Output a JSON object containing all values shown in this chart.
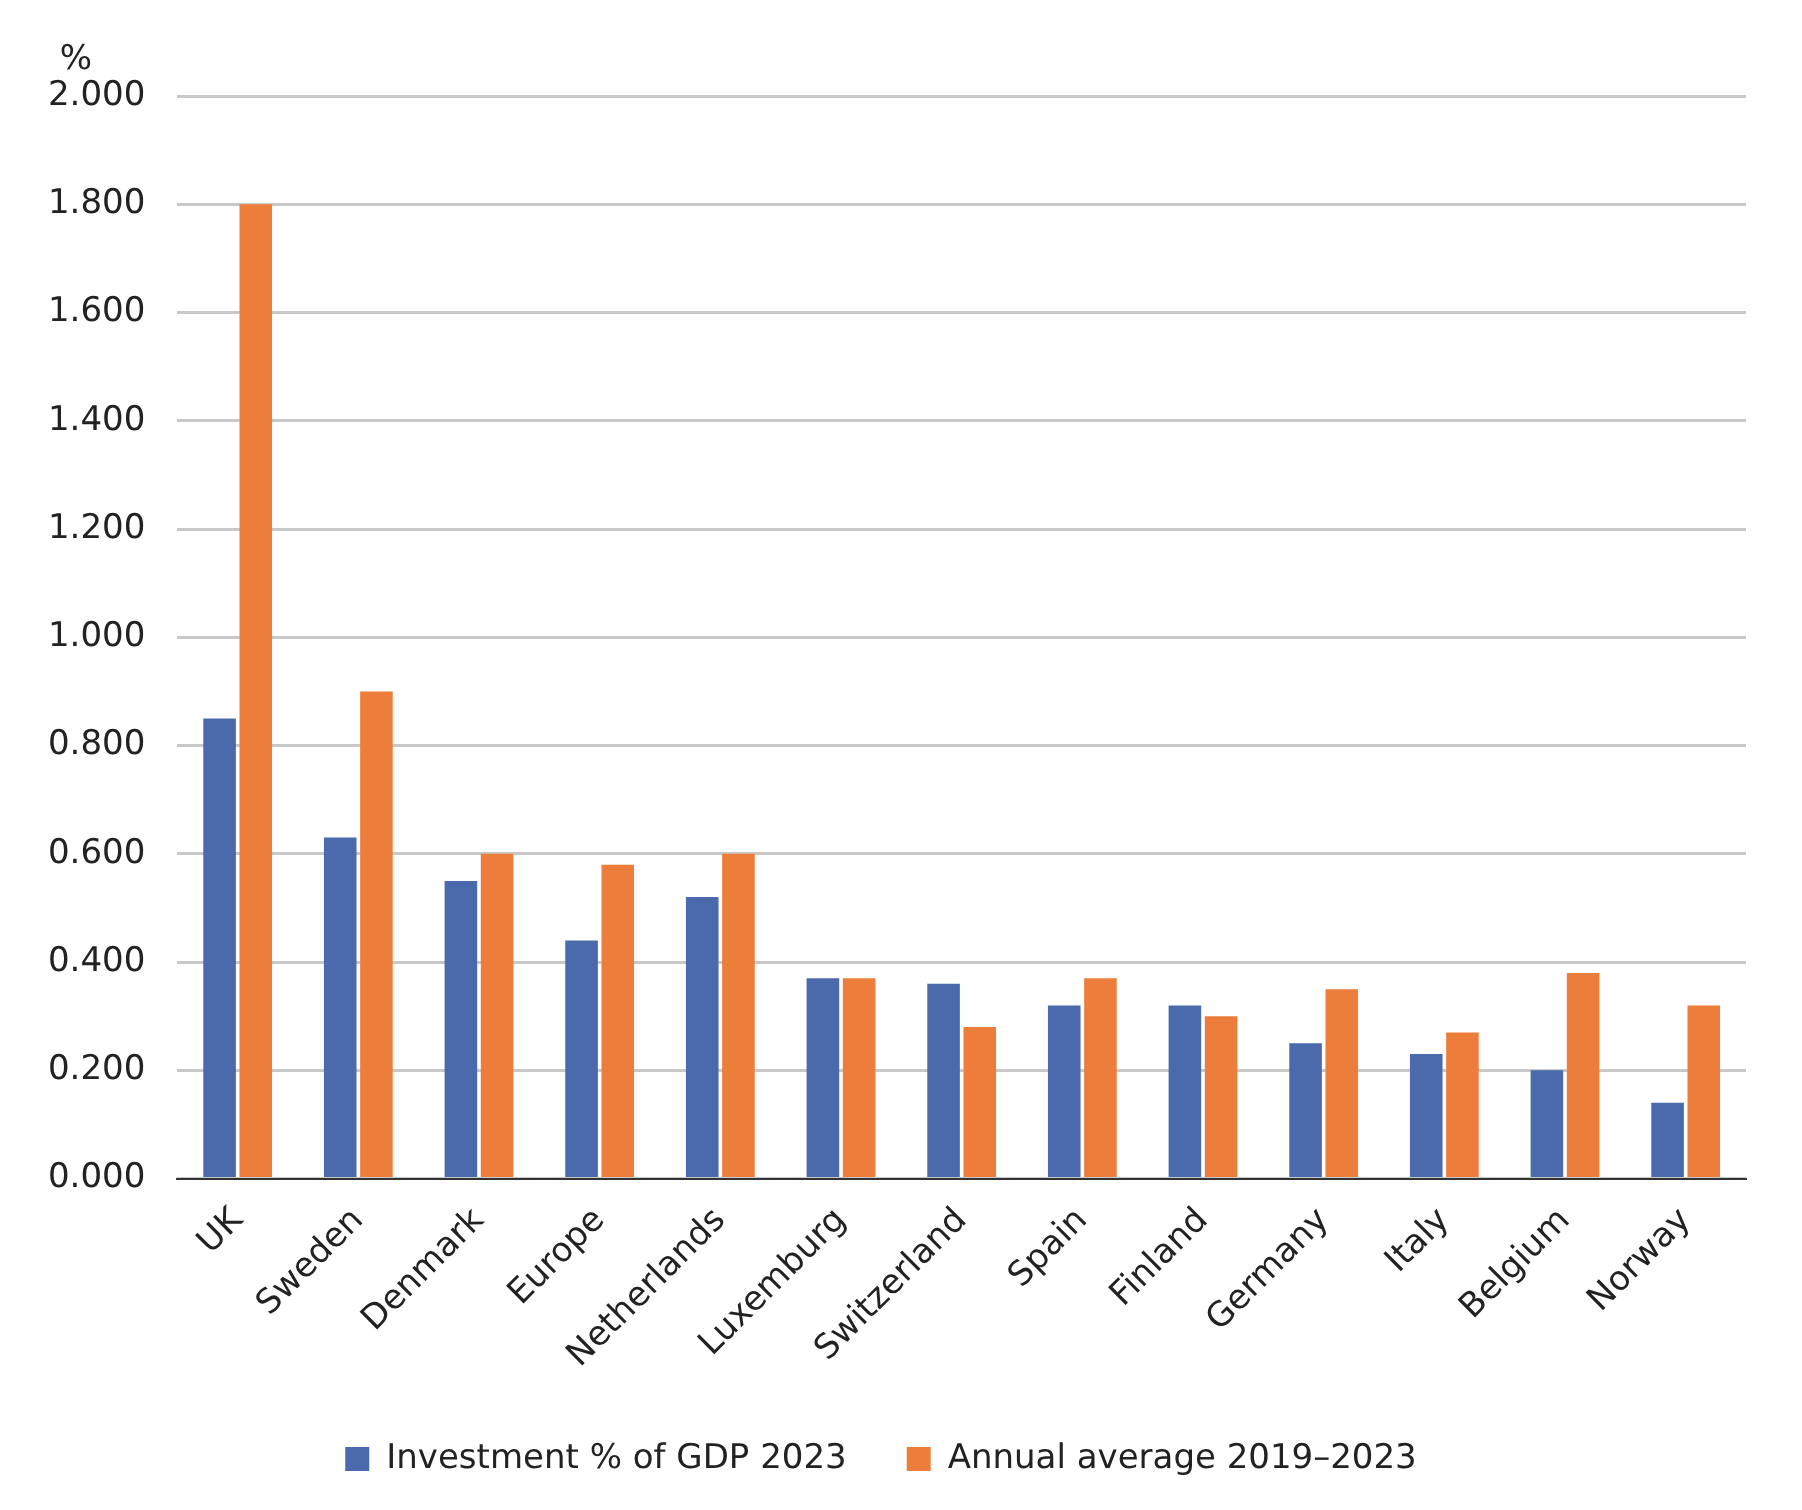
{
  "chart_data": {
    "type": "bar",
    "ylabel": "%",
    "categories": [
      "UK",
      "Sweden",
      "Denmark",
      "Europe",
      "Netherlands",
      "Luxemburg",
      "Switzerland",
      "Spain",
      "Finland",
      "Germany",
      "Italy",
      "Belgium",
      "Norway"
    ],
    "series": [
      {
        "name": "Investment % of GDP 2023",
        "color": "#4a6aab",
        "values": [
          0.85,
          0.63,
          0.55,
          0.44,
          0.52,
          0.37,
          0.36,
          0.32,
          0.32,
          0.25,
          0.23,
          0.2,
          0.14
        ]
      },
      {
        "name": "Annual average 2019–2023",
        "color": "#ed7d3a",
        "values": [
          1.8,
          0.9,
          0.6,
          0.58,
          0.6,
          0.37,
          0.28,
          0.37,
          0.3,
          0.35,
          0.27,
          0.38,
          0.32
        ]
      }
    ],
    "ylim": [
      0,
      2
    ],
    "yticks": [
      {
        "value": 0,
        "label": "0.000"
      },
      {
        "value": 0.2,
        "label": "0.200"
      },
      {
        "value": 0.4,
        "label": "0.400"
      },
      {
        "value": 0.6,
        "label": "0.600"
      },
      {
        "value": 0.8,
        "label": "0.800"
      },
      {
        "value": 1,
        "label": "1.000"
      },
      {
        "value": 1.2,
        "label": "1.200"
      },
      {
        "value": 1.4,
        "label": "1.400"
      },
      {
        "value": 1.6,
        "label": "1.600"
      },
      {
        "value": 1.8,
        "label": "1.800"
      },
      {
        "value": 2,
        "label": "2.000"
      }
    ],
    "grid": "y",
    "legend": "bottom"
  }
}
